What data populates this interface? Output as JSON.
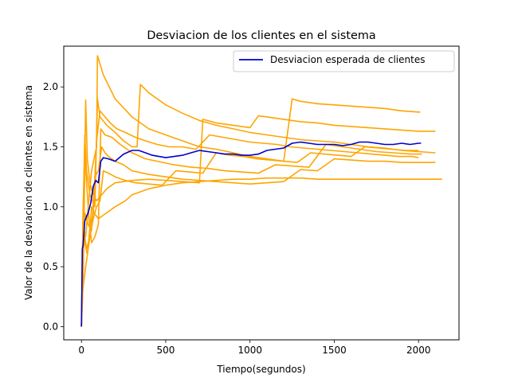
{
  "chart_data": {
    "type": "line",
    "title": "Desviacion de los clientes en el sistema",
    "xlabel": "Tiempo(segundos)",
    "ylabel": "Valor de la desviacion de clientes en sistema",
    "xlim": [
      -105,
      2240
    ],
    "ylim": [
      -0.11,
      2.34
    ],
    "xticks": [
      0,
      500,
      1000,
      1500,
      2000
    ],
    "xtick_labels": [
      "0",
      "500",
      "1000",
      "1500",
      "2000"
    ],
    "yticks": [
      0.0,
      0.5,
      1.0,
      1.5,
      2.0
    ],
    "ytick_labels": [
      "0.0",
      "0.5",
      "1.0",
      "1.5",
      "2.0"
    ],
    "grid": false,
    "legend_position": "top-right",
    "legend": [
      "Desviacion esperada de clientes"
    ],
    "colors": {
      "expected": "#0000cc",
      "runs": "#ffa500"
    },
    "series": [
      {
        "name": "Desviacion esperada de clientes",
        "role": "expected",
        "x": [
          0,
          5,
          10,
          20,
          30,
          40,
          55,
          70,
          85,
          100,
          115,
          130,
          160,
          200,
          250,
          300,
          340,
          380,
          420,
          460,
          500,
          550,
          600,
          650,
          700,
          750,
          800,
          850,
          900,
          950,
          1000,
          1050,
          1100,
          1150,
          1200,
          1250,
          1300,
          1350,
          1400,
          1450,
          1500,
          1550,
          1600,
          1650,
          1700,
          1750,
          1800,
          1850,
          1900,
          1950,
          2000,
          2015
        ],
        "y": [
          0.0,
          0.65,
          0.68,
          0.88,
          0.92,
          0.95,
          1.03,
          1.17,
          1.22,
          1.2,
          1.38,
          1.41,
          1.4,
          1.38,
          1.44,
          1.47,
          1.47,
          1.45,
          1.43,
          1.42,
          1.41,
          1.42,
          1.43,
          1.45,
          1.47,
          1.46,
          1.45,
          1.44,
          1.44,
          1.43,
          1.43,
          1.44,
          1.47,
          1.48,
          1.49,
          1.53,
          1.54,
          1.53,
          1.52,
          1.52,
          1.52,
          1.51,
          1.52,
          1.54,
          1.54,
          1.53,
          1.52,
          1.52,
          1.53,
          1.52,
          1.53,
          1.53
        ]
      },
      {
        "role": "run",
        "x": [
          0,
          8,
          15,
          25,
          40,
          60,
          90,
          95,
          130,
          200,
          300,
          400,
          500,
          600,
          700,
          800,
          900,
          1000,
          1100,
          1200,
          1250,
          1300,
          1400,
          1500,
          1600,
          1700,
          1800,
          1900,
          2000,
          2010
        ],
        "y": [
          0.0,
          0.6,
          0.8,
          0.75,
          1.0,
          1.3,
          1.5,
          2.26,
          2.1,
          1.9,
          1.75,
          1.65,
          1.6,
          1.55,
          1.5,
          1.48,
          1.45,
          1.42,
          1.4,
          1.38,
          1.9,
          1.88,
          1.86,
          1.85,
          1.84,
          1.83,
          1.82,
          1.8,
          1.79,
          1.79
        ]
      },
      {
        "role": "run",
        "x": [
          0,
          10,
          20,
          30,
          50,
          80,
          95,
          110,
          150,
          200,
          250,
          300,
          330,
          350,
          400,
          500,
          600,
          700,
          800,
          900,
          1000,
          1100,
          1200,
          1300,
          1400,
          1500,
          1600,
          1700,
          1800,
          1900,
          2000,
          2100
        ],
        "y": [
          0.0,
          0.9,
          1.6,
          1.3,
          1.1,
          1.0,
          1.9,
          1.75,
          1.68,
          1.62,
          1.55,
          1.5,
          1.5,
          2.02,
          1.95,
          1.85,
          1.78,
          1.72,
          1.68,
          1.65,
          1.62,
          1.6,
          1.58,
          1.56,
          1.55,
          1.54,
          1.52,
          1.5,
          1.49,
          1.47,
          1.46,
          1.45
        ]
      },
      {
        "role": "run",
        "x": [
          0,
          12,
          25,
          35,
          50,
          70,
          90,
          120,
          150,
          200,
          300,
          400,
          500,
          600,
          700,
          720,
          800,
          900,
          1000,
          1050,
          1100,
          1200,
          1300,
          1400,
          1500,
          1600,
          1700,
          1800,
          1900,
          2000,
          2100
        ],
        "y": [
          0.0,
          0.5,
          1.89,
          1.4,
          1.2,
          1.1,
          1.05,
          1.1,
          1.15,
          1.2,
          1.22,
          1.23,
          1.22,
          1.21,
          1.2,
          1.73,
          1.7,
          1.68,
          1.66,
          1.76,
          1.75,
          1.73,
          1.71,
          1.7,
          1.68,
          1.67,
          1.66,
          1.65,
          1.64,
          1.63,
          1.63
        ]
      },
      {
        "role": "run",
        "x": [
          0,
          10,
          20,
          40,
          60,
          80,
          100,
          120,
          140,
          160,
          200,
          250,
          300,
          400,
          500,
          600,
          700,
          800,
          900,
          1000,
          1100,
          1200,
          1300,
          1400,
          1500,
          1600,
          1700,
          1800,
          1900,
          2000,
          2100
        ],
        "y": [
          0.0,
          0.7,
          0.95,
          0.85,
          0.8,
          1.25,
          1.3,
          1.5,
          1.45,
          1.42,
          1.38,
          1.35,
          1.3,
          1.27,
          1.25,
          1.23,
          1.22,
          1.21,
          1.2,
          1.19,
          1.2,
          1.21,
          1.31,
          1.3,
          1.4,
          1.39,
          1.38,
          1.38,
          1.37,
          1.37,
          1.37
        ]
      },
      {
        "role": "run",
        "x": [
          0,
          15,
          30,
          45,
          60,
          75,
          100,
          150,
          200,
          260,
          300,
          400,
          500,
          600,
          700,
          800,
          900,
          1000,
          1100,
          1200,
          1300,
          1400,
          1500,
          1600,
          1700,
          1800,
          1900,
          2000,
          2140
        ],
        "y": [
          0.0,
          0.8,
          0.65,
          0.72,
          1.0,
          0.95,
          0.9,
          0.95,
          1.0,
          1.05,
          1.1,
          1.15,
          1.18,
          1.2,
          1.21,
          1.22,
          1.23,
          1.23,
          1.24,
          1.24,
          1.24,
          1.23,
          1.23,
          1.23,
          1.23,
          1.23,
          1.23,
          1.23,
          1.23
        ]
      },
      {
        "role": "run",
        "x": [
          0,
          10,
          20,
          30,
          45,
          60,
          80,
          100,
          115,
          140,
          180,
          230,
          300,
          380,
          450,
          550,
          650,
          750,
          850,
          950,
          1050,
          1150,
          1250,
          1350,
          1450,
          1550,
          1650,
          1750,
          1850,
          1950,
          2020
        ],
        "y": [
          0.0,
          1.0,
          1.5,
          1.2,
          0.9,
          0.7,
          0.75,
          0.85,
          1.65,
          1.6,
          1.58,
          1.52,
          1.45,
          1.4,
          1.38,
          1.35,
          1.33,
          1.32,
          1.3,
          1.29,
          1.28,
          1.35,
          1.34,
          1.33,
          1.52,
          1.5,
          1.48,
          1.46,
          1.45,
          1.44,
          1.44
        ]
      },
      {
        "role": "run",
        "x": [
          0,
          8,
          16,
          30,
          50,
          70,
          90,
          110,
          130,
          160,
          200,
          260,
          320,
          400,
          480,
          560,
          640,
          720,
          800,
          880,
          960,
          1040,
          1120,
          1200,
          1280,
          1360,
          1440,
          1520,
          1600,
          1680,
          1760,
          1840,
          1920,
          2000
        ],
        "y": [
          0.0,
          0.3,
          0.4,
          0.55,
          0.75,
          0.9,
          1.0,
          1.05,
          1.3,
          1.28,
          1.25,
          1.22,
          1.2,
          1.19,
          1.18,
          1.3,
          1.29,
          1.28,
          1.45,
          1.43,
          1.42,
          1.4,
          1.39,
          1.38,
          1.37,
          1.45,
          1.44,
          1.43,
          1.42,
          1.5,
          1.49,
          1.48,
          1.47,
          1.47
        ]
      },
      {
        "role": "run",
        "x": [
          0,
          10,
          20,
          35,
          50,
          70,
          90,
          110,
          140,
          170,
          210,
          260,
          320,
          380,
          450,
          520,
          600,
          680,
          760,
          840,
          920,
          1000,
          1080,
          1160,
          1240,
          1320,
          1400,
          1480,
          1560,
          1640,
          1720,
          1800,
          1880,
          1960,
          2000
        ],
        "y": [
          0.0,
          0.95,
          0.7,
          0.6,
          0.82,
          0.95,
          1.55,
          1.8,
          1.75,
          1.7,
          1.65,
          1.62,
          1.58,
          1.55,
          1.52,
          1.5,
          1.5,
          1.48,
          1.6,
          1.58,
          1.56,
          1.54,
          1.53,
          1.52,
          1.5,
          1.49,
          1.48,
          1.47,
          1.46,
          1.45,
          1.44,
          1.43,
          1.42,
          1.42,
          1.41
        ]
      }
    ]
  }
}
